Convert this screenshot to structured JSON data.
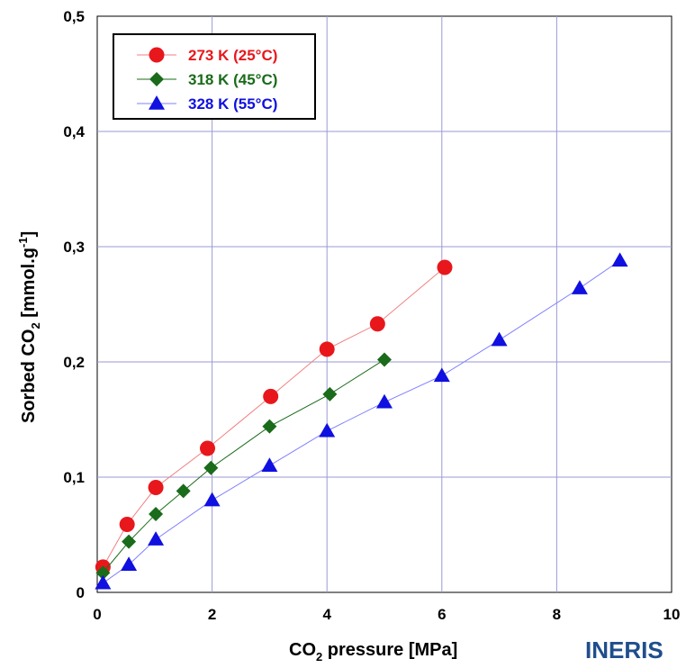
{
  "chart_data": {
    "type": "scatter",
    "xlabel": "CO2 pressure [MPa]",
    "xlabel_parts": {
      "pre": "CO",
      "sub": "2",
      "post": " pressure [MPa]"
    },
    "ylabel": "Sorbed CO2 [mmol.g-1]",
    "ylabel_parts": {
      "pre": "Sorbed CO",
      "sub": "2",
      "mid": " [mmol.g",
      "sup": "-1",
      "post": "]"
    },
    "xlim": [
      0,
      10
    ],
    "ylim": [
      0,
      0.5
    ],
    "x_ticks": [
      "0",
      "2",
      "4",
      "6",
      "8",
      "10"
    ],
    "y_ticks": [
      "0",
      "0,1",
      "0,2",
      "0,3",
      "0,4",
      "0,5"
    ],
    "grid": true,
    "legend_position": "top-left",
    "series": [
      {
        "name": "273 K (25°C)",
        "color": "#e8171c",
        "line_color": "#f08080",
        "marker": "circle",
        "x": [
          0.1,
          0.52,
          1.02,
          1.92,
          3.02,
          4.0,
          4.88,
          6.05
        ],
        "y": [
          0.022,
          0.059,
          0.091,
          0.125,
          0.17,
          0.211,
          0.233,
          0.282
        ]
      },
      {
        "name": "318 K (45°C)",
        "color": "#1a6b1a",
        "line_color": "#1a6b1a",
        "marker": "diamond",
        "x": [
          0.1,
          0.55,
          1.02,
          1.5,
          1.98,
          3.0,
          4.05,
          5.0
        ],
        "y": [
          0.017,
          0.044,
          0.068,
          0.088,
          0.108,
          0.144,
          0.172,
          0.202
        ]
      },
      {
        "name": "328 K (55°C)",
        "color": "#1010e0",
        "line_color": "#7f7fff",
        "marker": "triangle",
        "x": [
          0.1,
          0.55,
          1.02,
          2.0,
          3.0,
          4.0,
          5.0,
          6.0,
          7.0,
          8.4,
          9.1
        ],
        "y": [
          0.008,
          0.024,
          0.046,
          0.08,
          0.11,
          0.14,
          0.165,
          0.188,
          0.219,
          0.264,
          0.288
        ]
      }
    ]
  },
  "logo": {
    "text": "INERIS"
  }
}
